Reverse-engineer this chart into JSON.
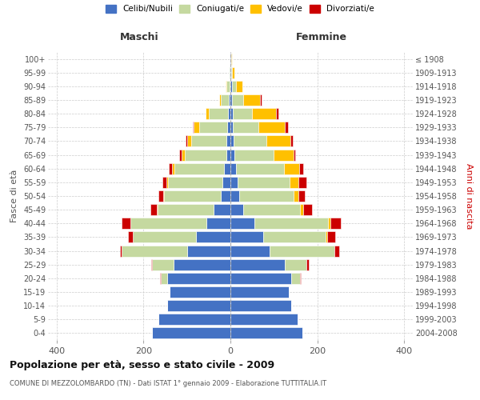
{
  "age_groups": [
    "0-4",
    "5-9",
    "10-14",
    "15-19",
    "20-24",
    "25-29",
    "30-34",
    "35-39",
    "40-44",
    "45-49",
    "50-54",
    "55-59",
    "60-64",
    "65-69",
    "70-74",
    "75-79",
    "80-84",
    "85-89",
    "90-94",
    "95-99",
    "100+"
  ],
  "birth_years": [
    "2004-2008",
    "1999-2003",
    "1994-1998",
    "1989-1993",
    "1984-1988",
    "1979-1983",
    "1974-1978",
    "1969-1973",
    "1964-1968",
    "1959-1963",
    "1954-1958",
    "1949-1953",
    "1944-1948",
    "1939-1943",
    "1934-1938",
    "1929-1933",
    "1924-1928",
    "1919-1923",
    "1914-1918",
    "1909-1913",
    "≤ 1908"
  ],
  "male": {
    "celibi": [
      180,
      165,
      145,
      140,
      145,
      130,
      100,
      80,
      55,
      38,
      22,
      18,
      14,
      10,
      10,
      7,
      5,
      3,
      2,
      1,
      1
    ],
    "coniugati": [
      0,
      0,
      0,
      0,
      15,
      50,
      150,
      145,
      175,
      130,
      130,
      125,
      115,
      95,
      80,
      65,
      45,
      20,
      8,
      3,
      1
    ],
    "vedovi": [
      0,
      0,
      0,
      0,
      0,
      0,
      0,
      0,
      0,
      2,
      3,
      4,
      5,
      8,
      10,
      12,
      8,
      3,
      1,
      0,
      0
    ],
    "divorziati": [
      0,
      0,
      0,
      0,
      2,
      2,
      5,
      10,
      20,
      15,
      10,
      10,
      8,
      5,
      3,
      2,
      0,
      0,
      0,
      0,
      0
    ]
  },
  "female": {
    "nubili": [
      165,
      155,
      140,
      135,
      140,
      125,
      90,
      75,
      55,
      30,
      20,
      17,
      13,
      10,
      8,
      5,
      5,
      4,
      3,
      1,
      1
    ],
    "coniugate": [
      0,
      0,
      0,
      0,
      20,
      50,
      150,
      145,
      170,
      130,
      125,
      120,
      110,
      90,
      75,
      60,
      45,
      25,
      10,
      3,
      1
    ],
    "vedove": [
      0,
      0,
      0,
      0,
      0,
      0,
      0,
      2,
      5,
      8,
      12,
      20,
      35,
      45,
      55,
      60,
      55,
      40,
      15,
      5,
      1
    ],
    "divorziate": [
      0,
      0,
      0,
      0,
      2,
      5,
      10,
      20,
      25,
      20,
      15,
      18,
      10,
      5,
      5,
      8,
      5,
      2,
      0,
      0,
      0
    ]
  },
  "colors": {
    "celibi": "#4472c4",
    "coniugati": "#c5d9a0",
    "vedovi": "#ffc000",
    "divorziati": "#cc0000"
  },
  "title": "Popolazione per età, sesso e stato civile - 2009",
  "subtitle": "COMUNE DI MEZZOLOMBARDO (TN) - Dati ISTAT 1° gennaio 2009 - Elaborazione TUTTITALIA.IT",
  "xlabel_left": "Maschi",
  "xlabel_right": "Femmine",
  "ylabel_left": "Fasce di età",
  "ylabel_right": "Anni di nascita",
  "xlim": 420,
  "legend_labels": [
    "Celibi/Nubili",
    "Coniugati/e",
    "Vedovi/e",
    "Divorziati/e"
  ]
}
